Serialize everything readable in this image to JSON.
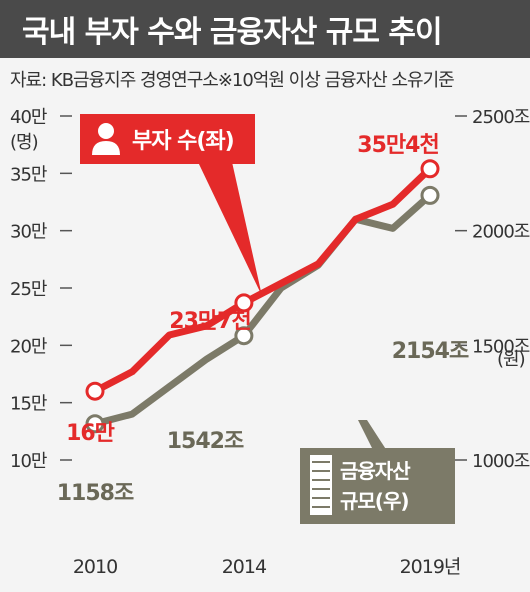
{
  "title": "국내 부자 수와 금융자산 규모 추이",
  "source": "자료: KB금융지주 경영연구소※10억원 이상 금융자산 소유기준",
  "colors": {
    "title_bg": "#4a4a4a",
    "red": "#e42a2a",
    "olive": "#7c7a68",
    "bg": "#f4f4f4"
  },
  "chart_data": {
    "type": "line",
    "x_ticks": [
      "2010",
      "2014",
      "2019년"
    ],
    "left_axis": {
      "ticks": [
        "10만",
        "15만",
        "20만",
        "25만",
        "30만",
        "35만",
        "40만"
      ],
      "unit": "(명)",
      "range": [
        10,
        40
      ]
    },
    "right_axis": {
      "ticks": [
        "1000조",
        "1500조",
        "2000조",
        "2500조"
      ],
      "unit": "(원)",
      "range": [
        1000,
        2500
      ]
    },
    "series": [
      {
        "name": "부자 수(좌)",
        "axis": "left",
        "x": [
          2010,
          2011,
          2012,
          2013,
          2014,
          2015,
          2016,
          2017,
          2018,
          2019
        ],
        "values": [
          16.0,
          17.7,
          20.9,
          21.7,
          23.7,
          25.4,
          27.1,
          31.0,
          32.3,
          35.4
        ],
        "point_labels": [
          {
            "x": 2010,
            "value": 16.0,
            "text": "16만"
          },
          {
            "x": 2014,
            "value": 23.7,
            "text": "23만7천"
          },
          {
            "x": 2019,
            "value": 35.4,
            "text": "35만4천"
          }
        ]
      },
      {
        "name": "금융자산 규모(우)",
        "axis": "right",
        "x": [
          2010,
          2011,
          2012,
          2013,
          2014,
          2015,
          2016,
          2017,
          2018,
          2019
        ],
        "values": [
          1158,
          1200,
          1320,
          1440,
          1542,
          1750,
          1850,
          2050,
          2010,
          2154
        ],
        "point_labels": [
          {
            "x": 2010,
            "value": 1158,
            "text": "1158조"
          },
          {
            "x": 2014,
            "value": 1542,
            "text": "1542조"
          },
          {
            "x": 2019,
            "value": 2154,
            "text": "2154조"
          }
        ]
      }
    ],
    "callouts": {
      "left": {
        "label": "부자 수(좌)",
        "icon": "person-icon"
      },
      "right": {
        "line1": "금융자산",
        "line2": "규모(우)",
        "icon": "building-icon"
      }
    }
  }
}
